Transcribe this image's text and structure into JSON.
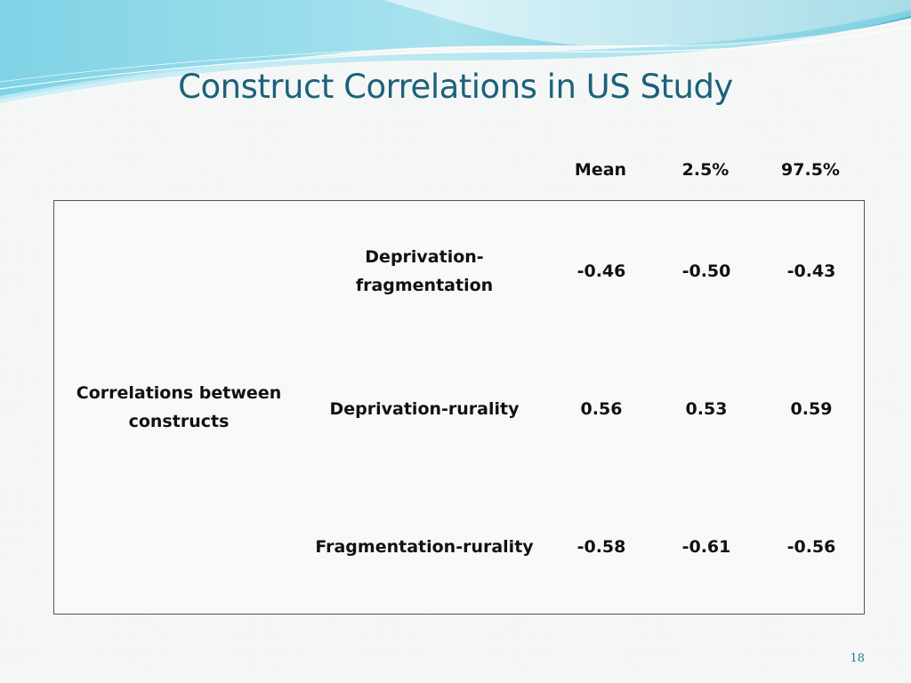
{
  "slide": {
    "title": "Construct Correlations in US Study",
    "page_number": "18"
  },
  "table": {
    "headers": {
      "mean": "Mean",
      "lower": "2.5%",
      "upper": "97.5%"
    },
    "group_label": "Correlations between constructs",
    "rows": [
      {
        "label": "Deprivation-fragmentation",
        "mean": "-0.46",
        "lower": "-0.50",
        "upper": "-0.43"
      },
      {
        "label": "Deprivation-rurality",
        "mean": "0.56",
        "lower": "0.53",
        "upper": "0.59"
      },
      {
        "label": "Fragmentation-rurality",
        "mean": "-0.58",
        "lower": "-0.61",
        "upper": "-0.56"
      }
    ]
  },
  "colors": {
    "title": "#1c6278",
    "wave_light": "#bfe9f2",
    "wave_mid": "#7fd3e6",
    "wave_dark": "#3fb2cc"
  }
}
